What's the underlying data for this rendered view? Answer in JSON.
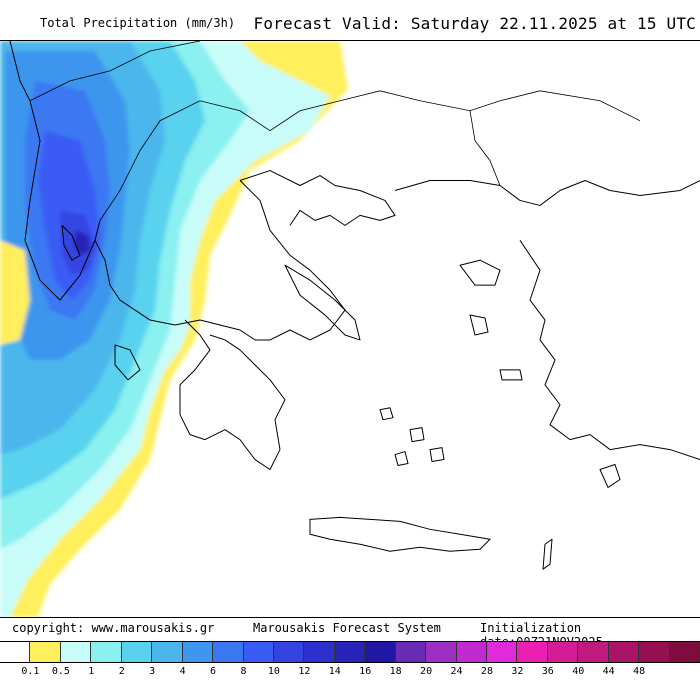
{
  "header": {
    "title": "Total Precipitation (mm/3h)",
    "valid": "Forecast Valid:  Saturday 22.11.2025 at 15 UTC"
  },
  "footer": {
    "copyright": "copyright: www.marousakis.gr",
    "system": "Marousakis Forecast System",
    "init": "Initialization date:00Z21NOV2025"
  },
  "scale": {
    "colors": [
      "#ffffff",
      "#ffef5c",
      "#c8fcf8",
      "#8af0f0",
      "#58d2ee",
      "#4cb6ec",
      "#3e96ee",
      "#3a78f2",
      "#3a5cf4",
      "#3444e2",
      "#2c30cc",
      "#2822b8",
      "#2018a4",
      "#6a2cb4",
      "#9c2ec2",
      "#c22ad0",
      "#e02adc",
      "#ea20b4",
      "#d41c94",
      "#c01a7e",
      "#aa1466",
      "#961052",
      "#7e0c3e"
    ],
    "labels": [
      "0.1",
      "0.5",
      "1",
      "2",
      "3",
      "4",
      "6",
      "8",
      "10",
      "12",
      "14",
      "16",
      "18",
      "20",
      "24",
      "28",
      "32",
      "36",
      "40",
      "44",
      "48"
    ]
  }
}
